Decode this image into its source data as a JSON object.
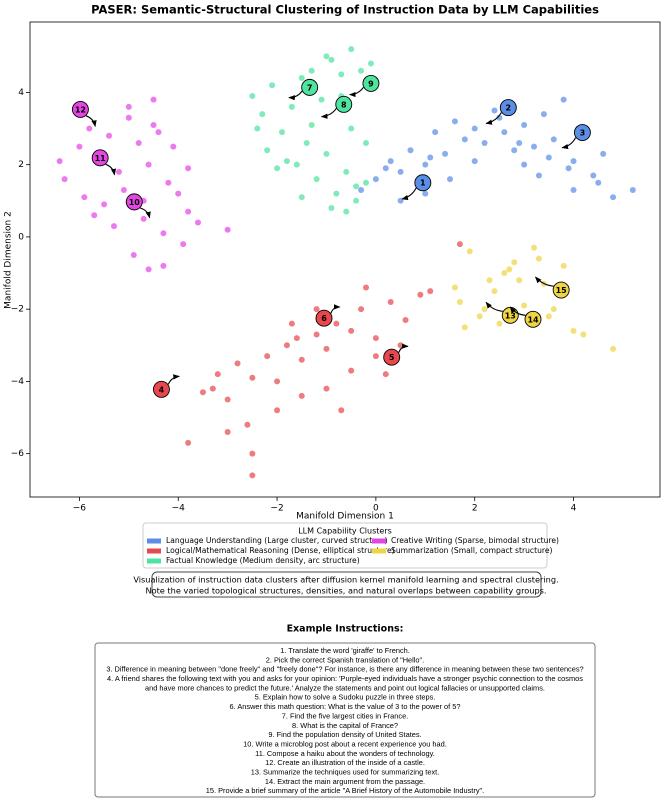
{
  "chart_data": {
    "type": "scatter",
    "title": "PASER: Semantic-Structural Clustering of Instruction Data by LLM Capabilities",
    "xlabel": "Manifold Dimension 1",
    "ylabel": "Manifold Dimension 2",
    "xlim": [
      -7.0,
      5.75
    ],
    "ylim": [
      -7.2,
      5.95
    ],
    "xticks": [
      {
        "value": -6,
        "label": "−6"
      },
      {
        "value": -4,
        "label": "−4"
      },
      {
        "value": -2,
        "label": "−2"
      },
      0,
      2,
      4
    ],
    "yticks": [
      {
        "value": -6,
        "label": "−6"
      },
      {
        "value": -4,
        "label": "−4"
      },
      {
        "value": -2,
        "label": "−2"
      },
      0,
      2,
      4
    ],
    "legend_title": "LLM Capability Clusters",
    "series": [
      {
        "name": "Language Understanding (Large cluster, curved structure)",
        "color": "#5b8ee6",
        "x": [
          -0.3,
          0,
          0.3,
          0.5,
          0.7,
          1.0,
          1.2,
          1.4,
          1.6,
          1.8,
          2.0,
          2.2,
          2.4,
          2.6,
          2.8,
          3.0,
          3.2,
          3.4,
          3.6,
          3.8,
          4.0,
          4.2,
          4.4,
          4.6,
          3.0,
          3.5,
          4.0,
          4.5,
          2.5,
          2.0,
          1.5,
          1.0,
          0.5,
          4.8,
          5.2,
          3.9,
          2.9,
          1.1,
          0.2,
          3.3
        ],
        "values": [
          1.3,
          1.6,
          2.1,
          1.8,
          2.4,
          2.0,
          2.9,
          2.3,
          3.2,
          2.7,
          3.0,
          2.6,
          3.5,
          2.9,
          2.4,
          3.1,
          2.5,
          3.4,
          2.7,
          3.8,
          2.1,
          2.8,
          1.7,
          2.3,
          2.0,
          2.2,
          1.3,
          1.5,
          3.3,
          2.1,
          1.6,
          1.2,
          1.0,
          1.1,
          1.3,
          1.9,
          2.6,
          2.2,
          1.9,
          1.7
        ]
      },
      {
        "name": "Logical/Mathematical Reasoning (Dense, elliptical structure)",
        "color": "#e8484d",
        "x": [
          -3.5,
          -3.2,
          -3.0,
          -2.8,
          -2.5,
          -2.2,
          -2.0,
          -1.8,
          -1.5,
          -1.2,
          -1.0,
          -0.8,
          -0.5,
          -0.3,
          0,
          0.3,
          0.6,
          0.9,
          1.1,
          -2.6,
          -2.0,
          -1.5,
          -1.0,
          -0.5,
          0,
          0.5,
          -3.8,
          -3.0,
          -2.5,
          -1.7,
          -1.2,
          -0.2,
          -2.5,
          1.7,
          -3.3,
          -0.7,
          0.2,
          -1.6
        ],
        "values": [
          -4.3,
          -3.8,
          -4.5,
          -3.5,
          -3.9,
          -3.3,
          -4.0,
          -3.0,
          -3.4,
          -2.7,
          -3.1,
          -2.4,
          -2.6,
          -2.0,
          -2.8,
          -1.8,
          -2.3,
          -1.6,
          -1.5,
          -5.2,
          -4.8,
          -4.4,
          -4.2,
          -3.7,
          -3.3,
          -3.0,
          -5.7,
          -5.4,
          -6.0,
          -2.4,
          -2.0,
          -1.4,
          -6.6,
          -0.2,
          -4.2,
          -4.8,
          -3.8,
          -2.8
        ]
      },
      {
        "name": "Factual Knowledge (Medium density, arc structure)",
        "color": "#4fe3a0",
        "x": [
          -2.5,
          -2.3,
          -2.1,
          -1.9,
          -1.7,
          -1.5,
          -1.3,
          -1.1,
          -0.9,
          -0.7,
          -0.5,
          -0.3,
          -0.1,
          -2.2,
          -1.8,
          -1.4,
          -1.0,
          -0.6,
          -0.2,
          -1.6,
          -1.2,
          -0.8,
          -0.4,
          -0.6,
          -0.9,
          -0.5,
          -0.2,
          -1.3,
          -2.4,
          -1.0,
          -0.7,
          -0.4,
          -1.5,
          -2.0
        ],
        "values": [
          3.9,
          3.4,
          4.2,
          2.9,
          3.6,
          4.4,
          3.1,
          3.8,
          4.9,
          4.5,
          5.2,
          4.6,
          4.8,
          2.4,
          2.1,
          2.6,
          2.3,
          1.8,
          1.5,
          2.0,
          1.6,
          1.2,
          1.0,
          0.7,
          0.8,
          3.0,
          2.6,
          4.6,
          3.0,
          5.0,
          3.9,
          1.4,
          1.1,
          1.9
        ]
      },
      {
        "name": "Creative Writing (Sparse, bimodal structure)",
        "color": "#e446e4",
        "x": [
          -6.3,
          -6.0,
          -5.8,
          -5.6,
          -5.4,
          -5.2,
          -5.0,
          -4.8,
          -4.6,
          -4.4,
          -4.2,
          -4.0,
          -3.8,
          -5.9,
          -5.5,
          -5.1,
          -4.7,
          -4.3,
          -3.9,
          -5.0,
          -4.5,
          -4.1,
          -3.6,
          -5.3,
          -4.9,
          -4.6,
          -4.3,
          -3.0,
          -6.4,
          -4.7,
          -5.7,
          -4.5,
          -3.8
        ],
        "values": [
          1.6,
          2.5,
          3.0,
          2.2,
          2.8,
          1.8,
          3.3,
          2.6,
          2.0,
          2.9,
          1.5,
          1.2,
          0.7,
          1.1,
          0.9,
          1.3,
          0.5,
          0.1,
          -0.2,
          3.6,
          3.8,
          2.5,
          0.4,
          0.3,
          -0.5,
          -0.9,
          -0.8,
          0.2,
          2.1,
          1.0,
          0.6,
          3.1,
          1.9
        ]
      },
      {
        "name": "Summarization (Small, compact structure)",
        "color": "#efd444",
        "x": [
          1.7,
          1.9,
          2.1,
          2.4,
          2.6,
          2.8,
          3.0,
          3.2,
          3.4,
          3.6,
          3.8,
          4.0,
          2.5,
          2.9,
          3.3,
          3.7,
          1.6,
          1.8,
          2.2,
          3.1,
          2.7,
          4.8,
          4.2,
          3.5,
          2.3
        ],
        "values": [
          -1.8,
          -0.4,
          -2.2,
          -1.5,
          -1.0,
          -0.7,
          -1.9,
          -0.3,
          -1.3,
          -2.0,
          -0.8,
          -2.6,
          -2.4,
          -1.2,
          -0.6,
          -1.6,
          -1.4,
          -2.5,
          -2.0,
          -2.3,
          -0.9,
          -3.1,
          -2.7,
          -2.2,
          -1.2
        ]
      }
    ],
    "annotations": [
      {
        "text": "1",
        "xy": [
          0.53,
          1.05
        ],
        "xytext": [
          0.95,
          1.5
        ],
        "color": "#5b8ee6"
      },
      {
        "text": "2",
        "xy": [
          2.23,
          3.14
        ],
        "xytext": [
          2.68,
          3.58
        ],
        "color": "#5b8ee6"
      },
      {
        "text": "3",
        "xy": [
          3.77,
          2.47
        ],
        "xytext": [
          4.18,
          2.89
        ],
        "color": "#5b8ee6"
      },
      {
        "text": "4",
        "xy": [
          -3.98,
          -3.86
        ],
        "xytext": [
          -4.34,
          -4.22
        ],
        "color": "#e8484d"
      },
      {
        "text": "5",
        "xy": [
          0.65,
          -3.03
        ],
        "xytext": [
          0.32,
          -3.33
        ],
        "color": "#e8484d"
      },
      {
        "text": "6",
        "xy": [
          -0.73,
          -1.94
        ],
        "xytext": [
          -1.05,
          -2.25
        ],
        "color": "#e8484d"
      },
      {
        "text": "7",
        "xy": [
          -1.76,
          3.86
        ],
        "xytext": [
          -1.34,
          4.14
        ],
        "color": "#4fe3a0"
      },
      {
        "text": "8",
        "xy": [
          -1.1,
          3.33
        ],
        "xytext": [
          -0.65,
          3.67
        ],
        "color": "#4fe3a0"
      },
      {
        "text": "9",
        "xy": [
          -0.53,
          3.94
        ],
        "xytext": [
          -0.1,
          4.25
        ],
        "color": "#4fe3a0"
      },
      {
        "text": "10",
        "xy": [
          -4.58,
          0.53
        ],
        "xytext": [
          -4.89,
          0.97
        ],
        "color": "#e446e4"
      },
      {
        "text": "11",
        "xy": [
          -5.29,
          1.72
        ],
        "xytext": [
          -5.58,
          2.19
        ],
        "color": "#e446e4"
      },
      {
        "text": "12",
        "xy": [
          -5.68,
          3.06
        ],
        "xytext": [
          -5.98,
          3.53
        ],
        "color": "#e446e4"
      },
      {
        "text": "13",
        "xy": [
          2.23,
          -1.81
        ],
        "xytext": [
          2.72,
          -2.17
        ],
        "color": "#efd444"
      },
      {
        "text": "14",
        "xy": [
          2.72,
          -1.94
        ],
        "xytext": [
          3.18,
          -2.28
        ],
        "color": "#efd444"
      },
      {
        "text": "15",
        "xy": [
          3.23,
          -1.11
        ],
        "xytext": [
          3.75,
          -1.47
        ],
        "color": "#efd444"
      }
    ]
  },
  "caption": [
    "Visualization of instruction data clusters after diffusion kernel manifold learning and spectral clustering.",
    "Note the varied topological structures, densities, and natural overlaps between capability groups."
  ],
  "instructions": {
    "title": "Example Instructions:",
    "lines": [
      "1. Translate the word 'giraffe' to French.",
      "2. Pick the correct Spanish translation of \"Hello\".",
      "3. Difference in meaning between \"done freely\" and \"freely done\"? For instance, is there any difference in meaning between these two sentences?",
      "4. A friend shares the following text with you and asks for your opinion: 'Purple-eyed individuals have a stronger psychic connection to the cosmos",
      "and have more chances to predict the future.' Analyze the statements and point out logical fallacies or unsupported claims.",
      "5. Explain how to solve a Sudoku puzzle in three steps.",
      "6. Answer this math question: What is the value of 3 to the power of 5?",
      "7. Find the five largest cities in France.",
      "8. What is the capital of France?",
      "9. Find the population density of United States.",
      "10. Write a microblog post about a recent experience you had.",
      "11. Compose a haiku about the wonders of technology.",
      "12. Create an illustration of the inside of a castle.",
      "13. Summarize the techniques used for summarizing text.",
      "14. Extract the main argument from the passage.",
      "15. Provide a brief summary of the article \"A Brief History of the Automobile Industry\"."
    ]
  }
}
